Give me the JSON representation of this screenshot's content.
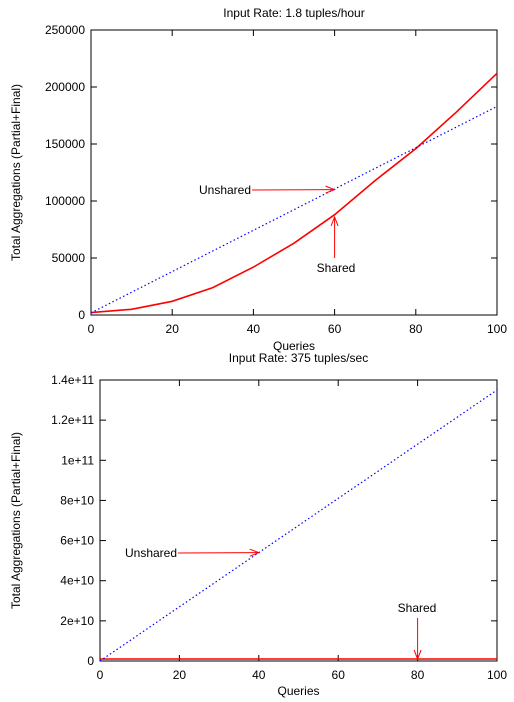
{
  "chart_data": [
    {
      "type": "line",
      "title": "Input Rate: 1.8 tuples/hour",
      "xlabel": "Queries",
      "ylabel": "Total Aggregations (Partial+Final)",
      "xlim": [
        0,
        100
      ],
      "ylim": [
        0,
        250000
      ],
      "xticks": [
        "0",
        "20",
        "40",
        "60",
        "80",
        "100"
      ],
      "yticks": [
        "0",
        "50000",
        "100000",
        "150000",
        "200000",
        "250000"
      ],
      "grid": false,
      "colors": {
        "Shared": "#ff0000",
        "Unshared": "#0000ff"
      },
      "series": [
        {
          "name": "Shared",
          "style": "solid",
          "x": [
            0,
            10,
            20,
            30,
            40,
            50,
            60,
            70,
            80,
            90,
            100
          ],
          "y": [
            2100,
            5000,
            12000,
            24000,
            42000,
            63000,
            88000,
            118000,
            146000,
            178000,
            212000
          ]
        },
        {
          "name": "Unshared",
          "style": "dotted",
          "x": [
            0,
            100
          ],
          "y": [
            1800,
            183000
          ]
        }
      ],
      "annotations": [
        {
          "text": "Unshared",
          "arrow_to": [
            60,
            110000
          ]
        },
        {
          "text": "Shared",
          "arrow_to": [
            60,
            86000
          ]
        }
      ]
    },
    {
      "type": "line",
      "title": "Input Rate: 375 tuples/sec",
      "xlabel": "Queries",
      "ylabel": "Total Aggregations (Partial+Final)",
      "xlim": [
        0,
        100
      ],
      "ylim": [
        0,
        140000000000
      ],
      "xticks": [
        "0",
        "20",
        "40",
        "60",
        "80",
        "100"
      ],
      "yticks": [
        "0",
        "2e+10",
        "4e+10",
        "6e+10",
        "8e+10",
        "1e+11",
        "1.2e+11",
        "1.4e+11"
      ],
      "grid": false,
      "colors": {
        "Shared": "#ff0000",
        "Unshared": "#0000ff"
      },
      "series": [
        {
          "name": "Shared",
          "style": "solid",
          "x": [
            0,
            100
          ],
          "y": [
            1000000000,
            1000000000
          ]
        },
        {
          "name": "Unshared",
          "style": "dotted",
          "x": [
            0,
            100
          ],
          "y": [
            0,
            135000000000
          ]
        }
      ],
      "annotations": [
        {
          "text": "Unshared",
          "arrow_to": [
            40,
            54000000000
          ]
        },
        {
          "text": "Shared",
          "arrow_to": [
            80,
            1000000000
          ]
        }
      ]
    }
  ]
}
